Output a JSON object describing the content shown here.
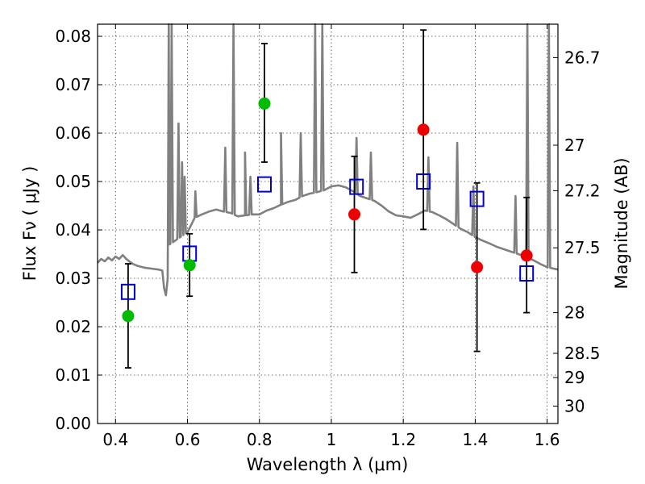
{
  "chart_data": {
    "type": "scatter",
    "xlabel": "Wavelength  λ (μm)",
    "ylabel": "Flux  Fν  ( μJy )",
    "y2label": "Magnitude (AB)",
    "xlim": [
      0.35,
      1.63
    ],
    "ylim": [
      0.0,
      0.0825
    ],
    "grid": true,
    "xticks": [
      {
        "value": 0.4,
        "label": "0.4"
      },
      {
        "value": 0.6,
        "label": "0.6"
      },
      {
        "value": 0.8,
        "label": "0.8"
      },
      {
        "value": 1.0,
        "label": "1"
      },
      {
        "value": 1.2,
        "label": "1.2"
      },
      {
        "value": 1.4,
        "label": "1.4"
      },
      {
        "value": 1.6,
        "label": "1.6"
      }
    ],
    "yticks": [
      {
        "value": 0.0,
        "label": "0.00"
      },
      {
        "value": 0.01,
        "label": "0.01"
      },
      {
        "value": 0.02,
        "label": "0.02"
      },
      {
        "value": 0.03,
        "label": "0.03"
      },
      {
        "value": 0.04,
        "label": "0.04"
      },
      {
        "value": 0.05,
        "label": "0.05"
      },
      {
        "value": 0.06,
        "label": "0.06"
      },
      {
        "value": 0.07,
        "label": "0.07"
      },
      {
        "value": 0.08,
        "label": "0.08"
      }
    ],
    "y2ticks": [
      {
        "label": "26.7",
        "flux": 0.0756
      },
      {
        "label": "27",
        "flux": 0.0575
      },
      {
        "label": "27.2",
        "flux": 0.0481
      },
      {
        "label": "27.5",
        "flux": 0.0363
      },
      {
        "label": "28",
        "flux": 0.0229
      },
      {
        "label": "28.5",
        "flux": 0.0145
      },
      {
        "label": "29",
        "flux": 0.0095
      },
      {
        "label": "30",
        "flux": 0.0036
      }
    ],
    "colors": {
      "model": "#808080",
      "green_points": "#00bb00",
      "red_points": "#ee0000",
      "model_flux_markers": "#0000cc",
      "error_bars": "#000000"
    },
    "series": [
      {
        "marker": "circle",
        "color": "#00bb00",
        "points": [
          {
            "x": 0.435,
            "y": 0.0222,
            "err_low": 0.0115,
            "err_high": 0.033
          },
          {
            "x": 0.606,
            "y": 0.0327,
            "err_low": 0.0263,
            "err_high": 0.0392
          },
          {
            "x": 0.814,
            "y": 0.0661,
            "err_low": 0.054,
            "err_high": 0.0785
          }
        ]
      },
      {
        "marker": "circle",
        "color": "#ee0000",
        "points": [
          {
            "x": 1.064,
            "y": 0.0432,
            "err_low": 0.0312,
            "err_high": 0.0552
          },
          {
            "x": 1.256,
            "y": 0.0607,
            "err_low": 0.0401,
            "err_high": 0.0813
          },
          {
            "x": 1.405,
            "y": 0.0323,
            "err_low": 0.0149,
            "err_high": 0.0497
          },
          {
            "x": 1.543,
            "y": 0.0347,
            "err_low": 0.0229,
            "err_high": 0.0467
          }
        ]
      },
      {
        "marker": "open-square",
        "color": "#0000cc",
        "points": [
          {
            "x": 0.435,
            "y": 0.0272
          },
          {
            "x": 0.606,
            "y": 0.0351
          },
          {
            "x": 0.814,
            "y": 0.0494
          },
          {
            "x": 1.07,
            "y": 0.0489
          },
          {
            "x": 1.256,
            "y": 0.05
          },
          {
            "x": 1.405,
            "y": 0.0464
          },
          {
            "x": 1.543,
            "y": 0.031
          }
        ]
      }
    ],
    "model_continuum": [
      [
        0.35,
        0.0332
      ],
      [
        0.36,
        0.034
      ],
      [
        0.37,
        0.0335
      ],
      [
        0.38,
        0.0343
      ],
      [
        0.39,
        0.0337
      ],
      [
        0.4,
        0.0345
      ],
      [
        0.41,
        0.034
      ],
      [
        0.42,
        0.0348
      ],
      [
        0.43,
        0.034
      ],
      [
        0.44,
        0.0334
      ],
      [
        0.45,
        0.0329
      ],
      [
        0.46,
        0.0326
      ],
      [
        0.47,
        0.0324
      ],
      [
        0.48,
        0.0322
      ],
      [
        0.5,
        0.032
      ],
      [
        0.52,
        0.0318
      ],
      [
        0.53,
        0.0316
      ],
      [
        0.535,
        0.028
      ],
      [
        0.54,
        0.0265
      ],
      [
        0.545,
        0.03
      ],
      [
        0.55,
        0.037
      ],
      [
        0.56,
        0.0375
      ],
      [
        0.58,
        0.0385
      ],
      [
        0.6,
        0.0395
      ],
      [
        0.61,
        0.041
      ],
      [
        0.62,
        0.0425
      ],
      [
        0.64,
        0.0432
      ],
      [
        0.66,
        0.0438
      ],
      [
        0.68,
        0.0442
      ],
      [
        0.7,
        0.0438
      ],
      [
        0.72,
        0.0435
      ],
      [
        0.74,
        0.0428
      ],
      [
        0.76,
        0.043
      ],
      [
        0.78,
        0.0432
      ],
      [
        0.8,
        0.0432
      ],
      [
        0.82,
        0.044
      ],
      [
        0.84,
        0.0445
      ],
      [
        0.86,
        0.0452
      ],
      [
        0.88,
        0.0458
      ],
      [
        0.9,
        0.0462
      ],
      [
        0.92,
        0.047
      ],
      [
        0.94,
        0.0475
      ],
      [
        0.96,
        0.0478
      ],
      [
        0.98,
        0.0482
      ],
      [
        1.0,
        0.049
      ],
      [
        1.02,
        0.0492
      ],
      [
        1.04,
        0.0488
      ],
      [
        1.06,
        0.048
      ],
      [
        1.08,
        0.047
      ],
      [
        1.1,
        0.0465
      ],
      [
        1.12,
        0.046
      ],
      [
        1.14,
        0.045
      ],
      [
        1.16,
        0.0438
      ],
      [
        1.18,
        0.043
      ],
      [
        1.2,
        0.0428
      ],
      [
        1.22,
        0.0425
      ],
      [
        1.24,
        0.0432
      ],
      [
        1.26,
        0.044
      ],
      [
        1.28,
        0.0437
      ],
      [
        1.3,
        0.043
      ],
      [
        1.32,
        0.0422
      ],
      [
        1.34,
        0.0412
      ],
      [
        1.36,
        0.0402
      ],
      [
        1.38,
        0.0395
      ],
      [
        1.4,
        0.0385
      ],
      [
        1.42,
        0.0378
      ],
      [
        1.44,
        0.0372
      ],
      [
        1.46,
        0.0365
      ],
      [
        1.48,
        0.036
      ],
      [
        1.5,
        0.0355
      ],
      [
        1.52,
        0.035
      ],
      [
        1.54,
        0.0345
      ],
      [
        1.56,
        0.0338
      ],
      [
        1.58,
        0.033
      ],
      [
        1.6,
        0.0323
      ],
      [
        1.63,
        0.0318
      ]
    ],
    "model_emission_lines": [
      {
        "x": 0.548,
        "peak": 0.0825
      },
      {
        "x": 0.556,
        "peak": 0.0825
      },
      {
        "x": 0.575,
        "peak": 0.062
      },
      {
        "x": 0.585,
        "peak": 0.054
      },
      {
        "x": 0.592,
        "peak": 0.051
      },
      {
        "x": 0.622,
        "peak": 0.048
      },
      {
        "x": 0.705,
        "peak": 0.057
      },
      {
        "x": 0.728,
        "peak": 0.0825
      },
      {
        "x": 0.76,
        "peak": 0.056
      },
      {
        "x": 0.775,
        "peak": 0.051
      },
      {
        "x": 0.86,
        "peak": 0.06
      },
      {
        "x": 0.915,
        "peak": 0.06
      },
      {
        "x": 0.955,
        "peak": 0.0825
      },
      {
        "x": 0.975,
        "peak": 0.0825
      },
      {
        "x": 1.07,
        "peak": 0.059
      },
      {
        "x": 1.11,
        "peak": 0.056
      },
      {
        "x": 1.27,
        "peak": 0.055
      },
      {
        "x": 1.35,
        "peak": 0.058
      },
      {
        "x": 1.395,
        "peak": 0.049
      },
      {
        "x": 1.512,
        "peak": 0.047
      },
      {
        "x": 1.545,
        "peak": 0.0825
      },
      {
        "x": 1.605,
        "peak": 0.0825
      }
    ]
  }
}
